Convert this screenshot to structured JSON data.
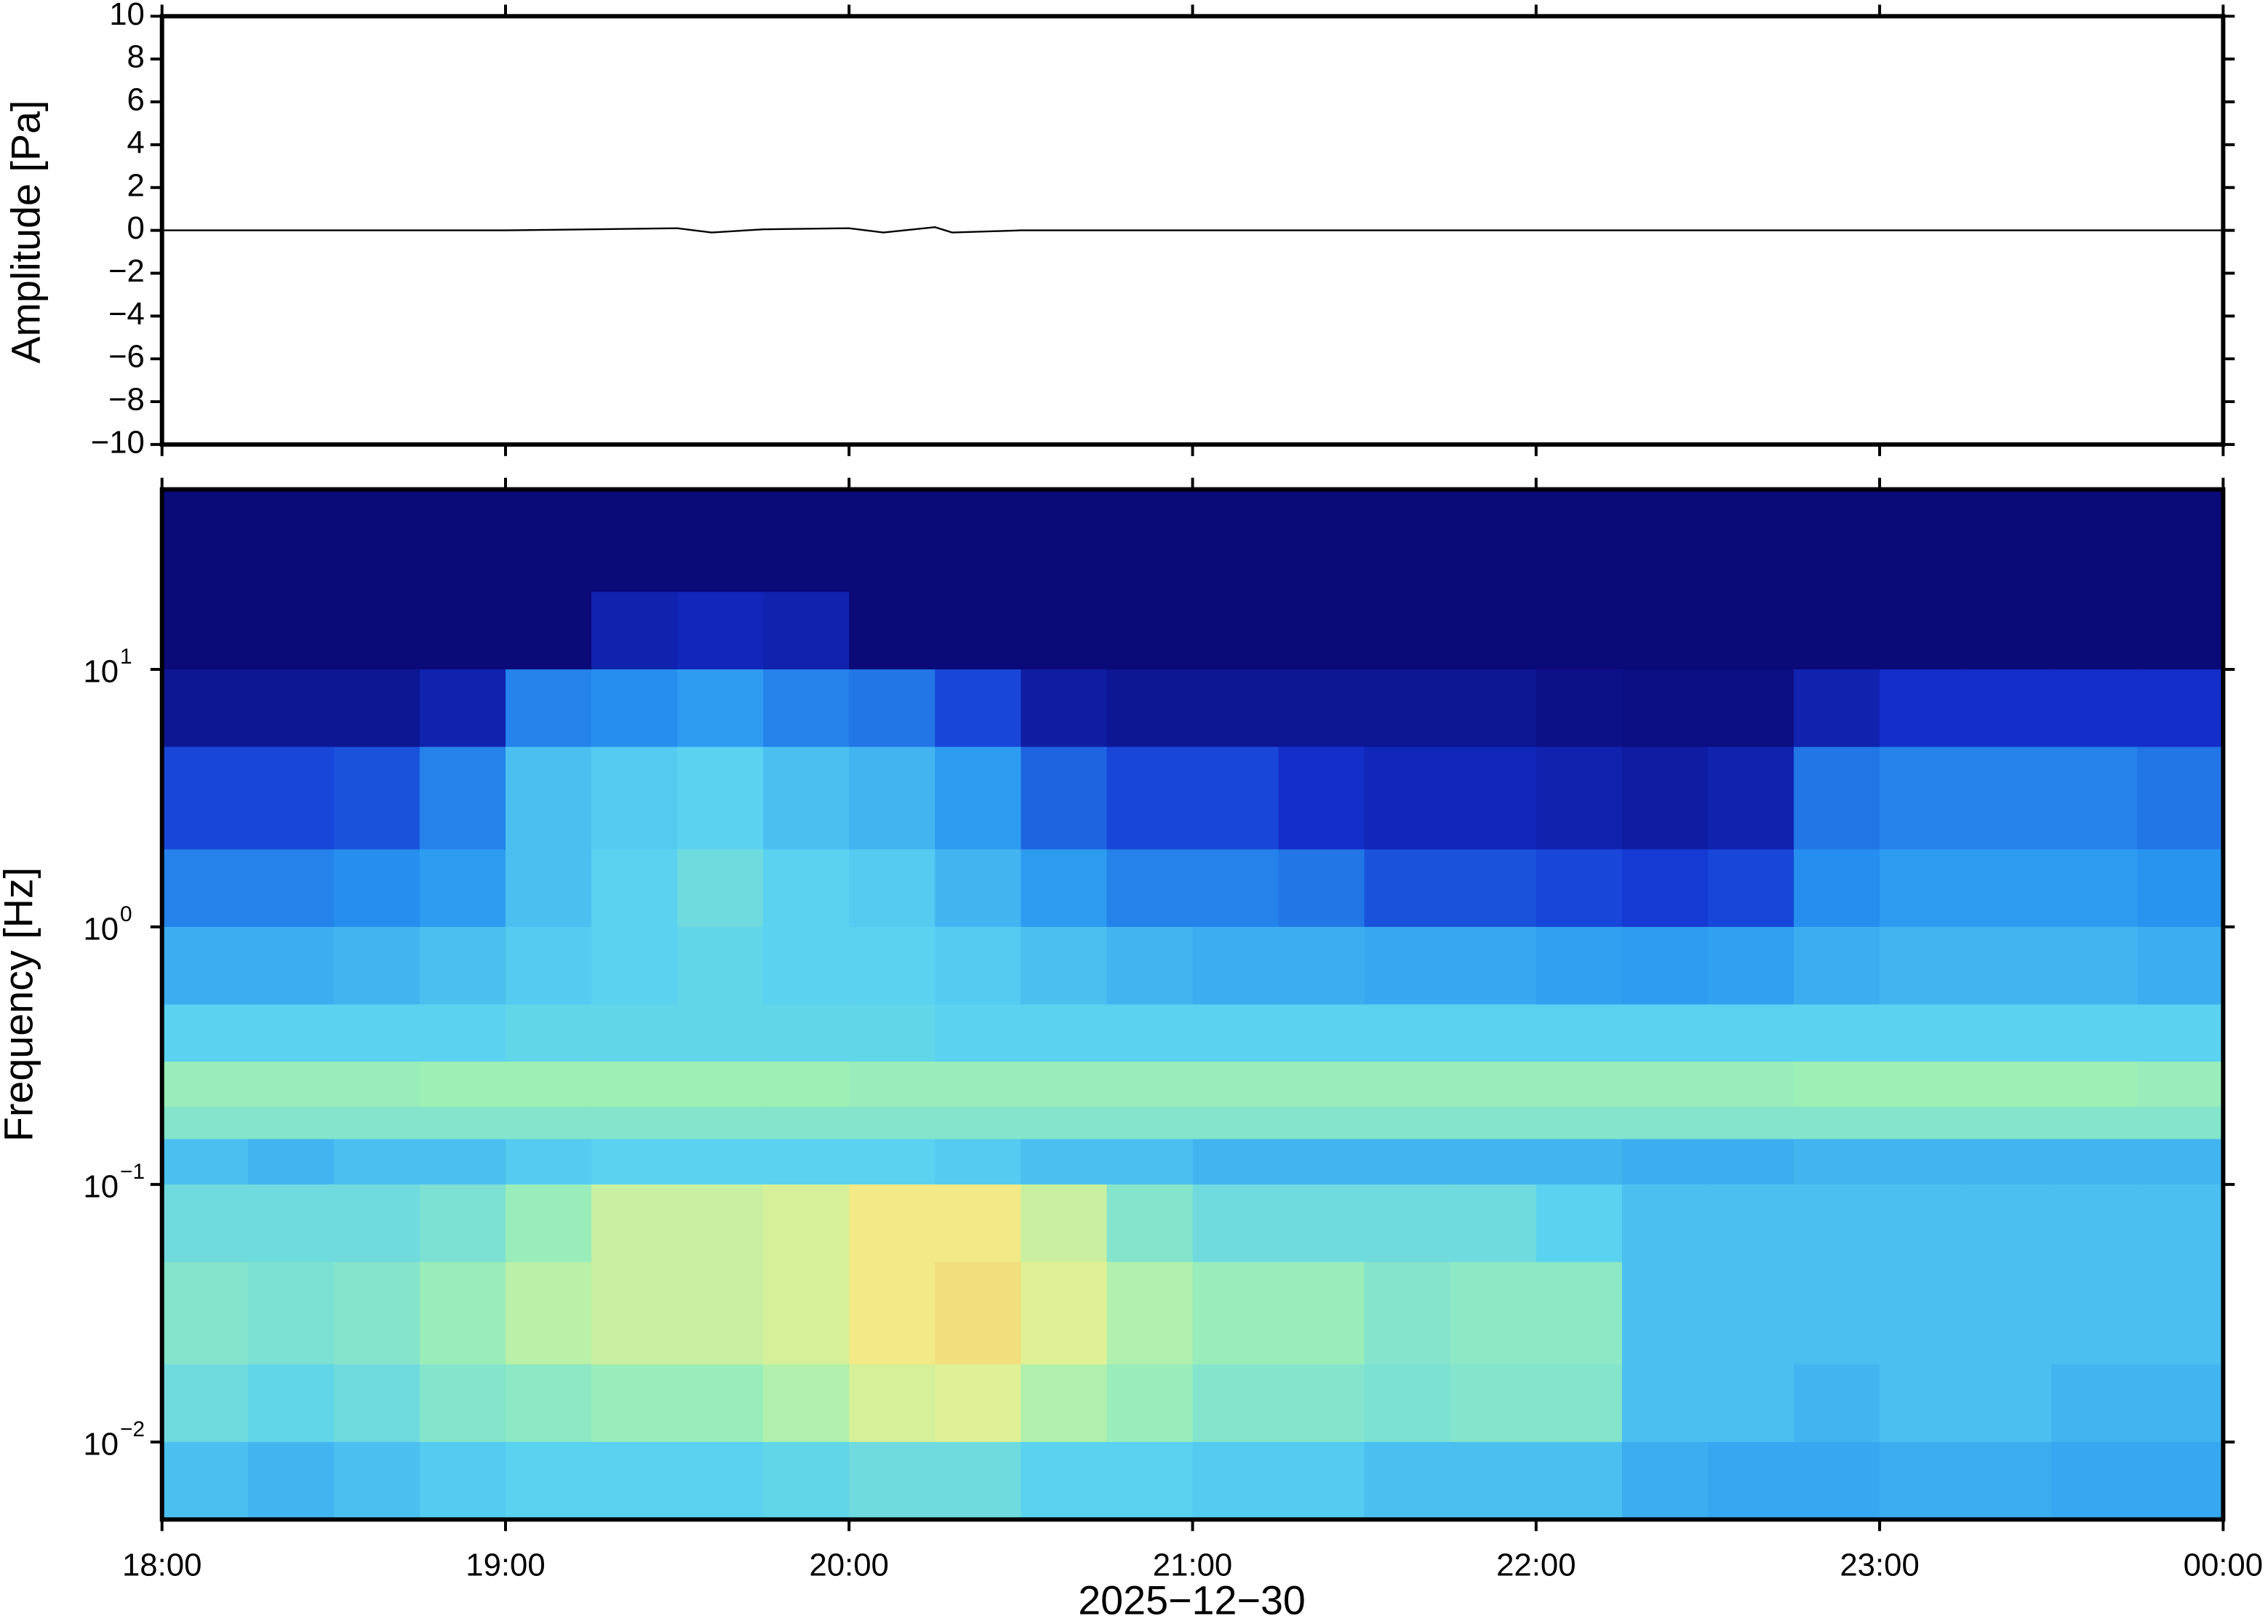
{
  "chart_data": [
    {
      "type": "line",
      "ylabel": "Amplitude [Pa]",
      "xlim": [
        18,
        24
      ],
      "xticks": [
        18,
        19,
        20,
        21,
        22,
        23,
        24
      ],
      "ylim": [
        -10,
        10
      ],
      "yticks": [
        {
          "value": -10,
          "label": "−10"
        },
        {
          "value": -8,
          "label": "−8"
        },
        {
          "value": -6,
          "label": "−6"
        },
        {
          "value": -4,
          "label": "−4"
        },
        {
          "value": -2,
          "label": "−2"
        },
        0,
        2,
        4,
        6,
        8,
        10
      ],
      "color": "#000000",
      "x": [
        18,
        18.25,
        18.5,
        18.75,
        19,
        19.25,
        19.5,
        19.6,
        19.75,
        20,
        20.1,
        20.25,
        20.3,
        20.5,
        20.75,
        21,
        21.25,
        21.5,
        21.75,
        22,
        22.25,
        22.5,
        22.75,
        23,
        23.25,
        23.5,
        23.75,
        24
      ],
      "values": [
        0,
        0,
        0,
        0,
        0,
        0.05,
        0.1,
        -0.1,
        0.05,
        0.1,
        -0.1,
        0.15,
        -0.1,
        0,
        0,
        0,
        0,
        0,
        0,
        0,
        0,
        0,
        0,
        0,
        0,
        0,
        0,
        0
      ]
    },
    {
      "type": "heatmap",
      "ylabel": "Frequency [Hz]",
      "xlabel": "2025−12−30",
      "yscale": "log",
      "xlim": [
        18,
        24
      ],
      "xticks": [
        {
          "value": 18,
          "label": "18:00"
        },
        {
          "value": 19,
          "label": "19:00"
        },
        {
          "value": 20,
          "label": "20:00"
        },
        {
          "value": 21,
          "label": "21:00"
        },
        {
          "value": 22,
          "label": "22:00"
        },
        {
          "value": 23,
          "label": "23:00"
        },
        {
          "value": 24,
          "label": "00:00"
        }
      ],
      "ylim": [
        0.005,
        50
      ],
      "yticks": [
        {
          "value": 0.01,
          "label": "10",
          "exponent": "−2"
        },
        {
          "value": 0.1,
          "label": "10",
          "exponent": "−1"
        },
        {
          "value": 1,
          "label": "10",
          "exponent": "0"
        },
        {
          "value": 10,
          "label": "10",
          "exponent": "1"
        }
      ],
      "colors": [
        "#0a0a78",
        "#1432d2",
        "#2896f0",
        "#5ad2f0",
        "#a0f0b4",
        "#f0f08c",
        "#f5b45a"
      ],
      "clim": [
        0,
        1
      ],
      "x_bins": [
        18,
        18.25,
        18.5,
        18.75,
        19,
        19.25,
        19.5,
        19.75,
        20,
        20.25,
        20.5,
        20.75,
        21,
        21.25,
        21.5,
        21.75,
        22,
        22.25,
        22.5,
        22.75,
        23,
        23.25,
        23.5,
        23.75,
        24
      ],
      "y_bins": [
        50,
        20,
        10,
        5,
        2,
        1,
        0.5,
        0.3,
        0.2,
        0.15,
        0.1,
        0.05,
        0.02,
        0.01,
        0.005
      ],
      "values": [
        [
          0,
          0,
          0,
          0,
          0,
          0,
          0,
          0,
          0,
          0,
          0,
          0,
          0,
          0,
          0,
          0,
          0,
          0,
          0,
          0,
          0,
          0,
          0,
          0
        ],
        [
          0,
          0,
          0,
          0,
          0,
          0.1,
          0.12,
          0.1,
          0,
          0,
          0,
          0,
          0,
          0,
          0,
          0,
          0,
          0,
          0,
          0,
          0,
          0,
          0,
          0
        ],
        [
          0.05,
          0.05,
          0.05,
          0.1,
          0.3,
          0.32,
          0.35,
          0.3,
          0.28,
          0.2,
          0.08,
          0.05,
          0.05,
          0.05,
          0.05,
          0.05,
          0.03,
          0.02,
          0.02,
          0.1,
          0.15,
          0.15,
          0.15,
          0.15
        ],
        [
          0.2,
          0.2,
          0.22,
          0.3,
          0.45,
          0.48,
          0.5,
          0.45,
          0.42,
          0.35,
          0.25,
          0.2,
          0.2,
          0.15,
          0.12,
          0.12,
          0.1,
          0.08,
          0.1,
          0.28,
          0.3,
          0.3,
          0.3,
          0.28
        ],
        [
          0.3,
          0.3,
          0.32,
          0.35,
          0.45,
          0.5,
          0.55,
          0.5,
          0.48,
          0.42,
          0.35,
          0.3,
          0.3,
          0.28,
          0.22,
          0.22,
          0.2,
          0.18,
          0.2,
          0.32,
          0.35,
          0.35,
          0.35,
          0.33
        ],
        [
          0.4,
          0.4,
          0.42,
          0.45,
          0.48,
          0.5,
          0.52,
          0.5,
          0.5,
          0.48,
          0.45,
          0.42,
          0.4,
          0.4,
          0.38,
          0.38,
          0.36,
          0.35,
          0.36,
          0.4,
          0.42,
          0.42,
          0.42,
          0.4
        ],
        [
          0.5,
          0.5,
          0.5,
          0.5,
          0.52,
          0.52,
          0.52,
          0.52,
          0.52,
          0.5,
          0.5,
          0.5,
          0.5,
          0.5,
          0.5,
          0.5,
          0.5,
          0.5,
          0.5,
          0.5,
          0.5,
          0.5,
          0.5,
          0.5
        ],
        [
          0.65,
          0.65,
          0.65,
          0.66,
          0.66,
          0.66,
          0.66,
          0.66,
          0.65,
          0.65,
          0.65,
          0.65,
          0.65,
          0.65,
          0.65,
          0.65,
          0.65,
          0.65,
          0.65,
          0.66,
          0.66,
          0.66,
          0.66,
          0.65
        ],
        [
          0.6,
          0.6,
          0.6,
          0.6,
          0.6,
          0.6,
          0.6,
          0.6,
          0.6,
          0.6,
          0.6,
          0.6,
          0.6,
          0.6,
          0.6,
          0.6,
          0.6,
          0.6,
          0.6,
          0.6,
          0.6,
          0.6,
          0.6,
          0.6
        ],
        [
          0.45,
          0.42,
          0.45,
          0.45,
          0.48,
          0.5,
          0.5,
          0.5,
          0.5,
          0.48,
          0.45,
          0.45,
          0.42,
          0.42,
          0.42,
          0.42,
          0.42,
          0.4,
          0.4,
          0.42,
          0.42,
          0.42,
          0.42,
          0.42
        ],
        [
          0.55,
          0.55,
          0.55,
          0.58,
          0.65,
          0.75,
          0.75,
          0.78,
          0.85,
          0.85,
          0.75,
          0.6,
          0.55,
          0.55,
          0.55,
          0.55,
          0.5,
          0.45,
          0.45,
          0.45,
          0.45,
          0.45,
          0.45,
          0.45
        ],
        [
          0.6,
          0.58,
          0.6,
          0.65,
          0.72,
          0.75,
          0.75,
          0.78,
          0.85,
          0.88,
          0.8,
          0.7,
          0.65,
          0.65,
          0.6,
          0.62,
          0.62,
          0.45,
          0.45,
          0.45,
          0.45,
          0.45,
          0.45,
          0.45
        ],
        [
          0.55,
          0.52,
          0.55,
          0.6,
          0.62,
          0.65,
          0.65,
          0.7,
          0.78,
          0.8,
          0.7,
          0.65,
          0.6,
          0.6,
          0.58,
          0.6,
          0.6,
          0.45,
          0.45,
          0.42,
          0.45,
          0.45,
          0.42,
          0.42
        ],
        [
          0.45,
          0.42,
          0.45,
          0.48,
          0.5,
          0.5,
          0.5,
          0.52,
          0.55,
          0.55,
          0.5,
          0.5,
          0.48,
          0.48,
          0.45,
          0.45,
          0.45,
          0.4,
          0.38,
          0.38,
          0.4,
          0.4,
          0.38,
          0.38
        ]
      ]
    }
  ]
}
